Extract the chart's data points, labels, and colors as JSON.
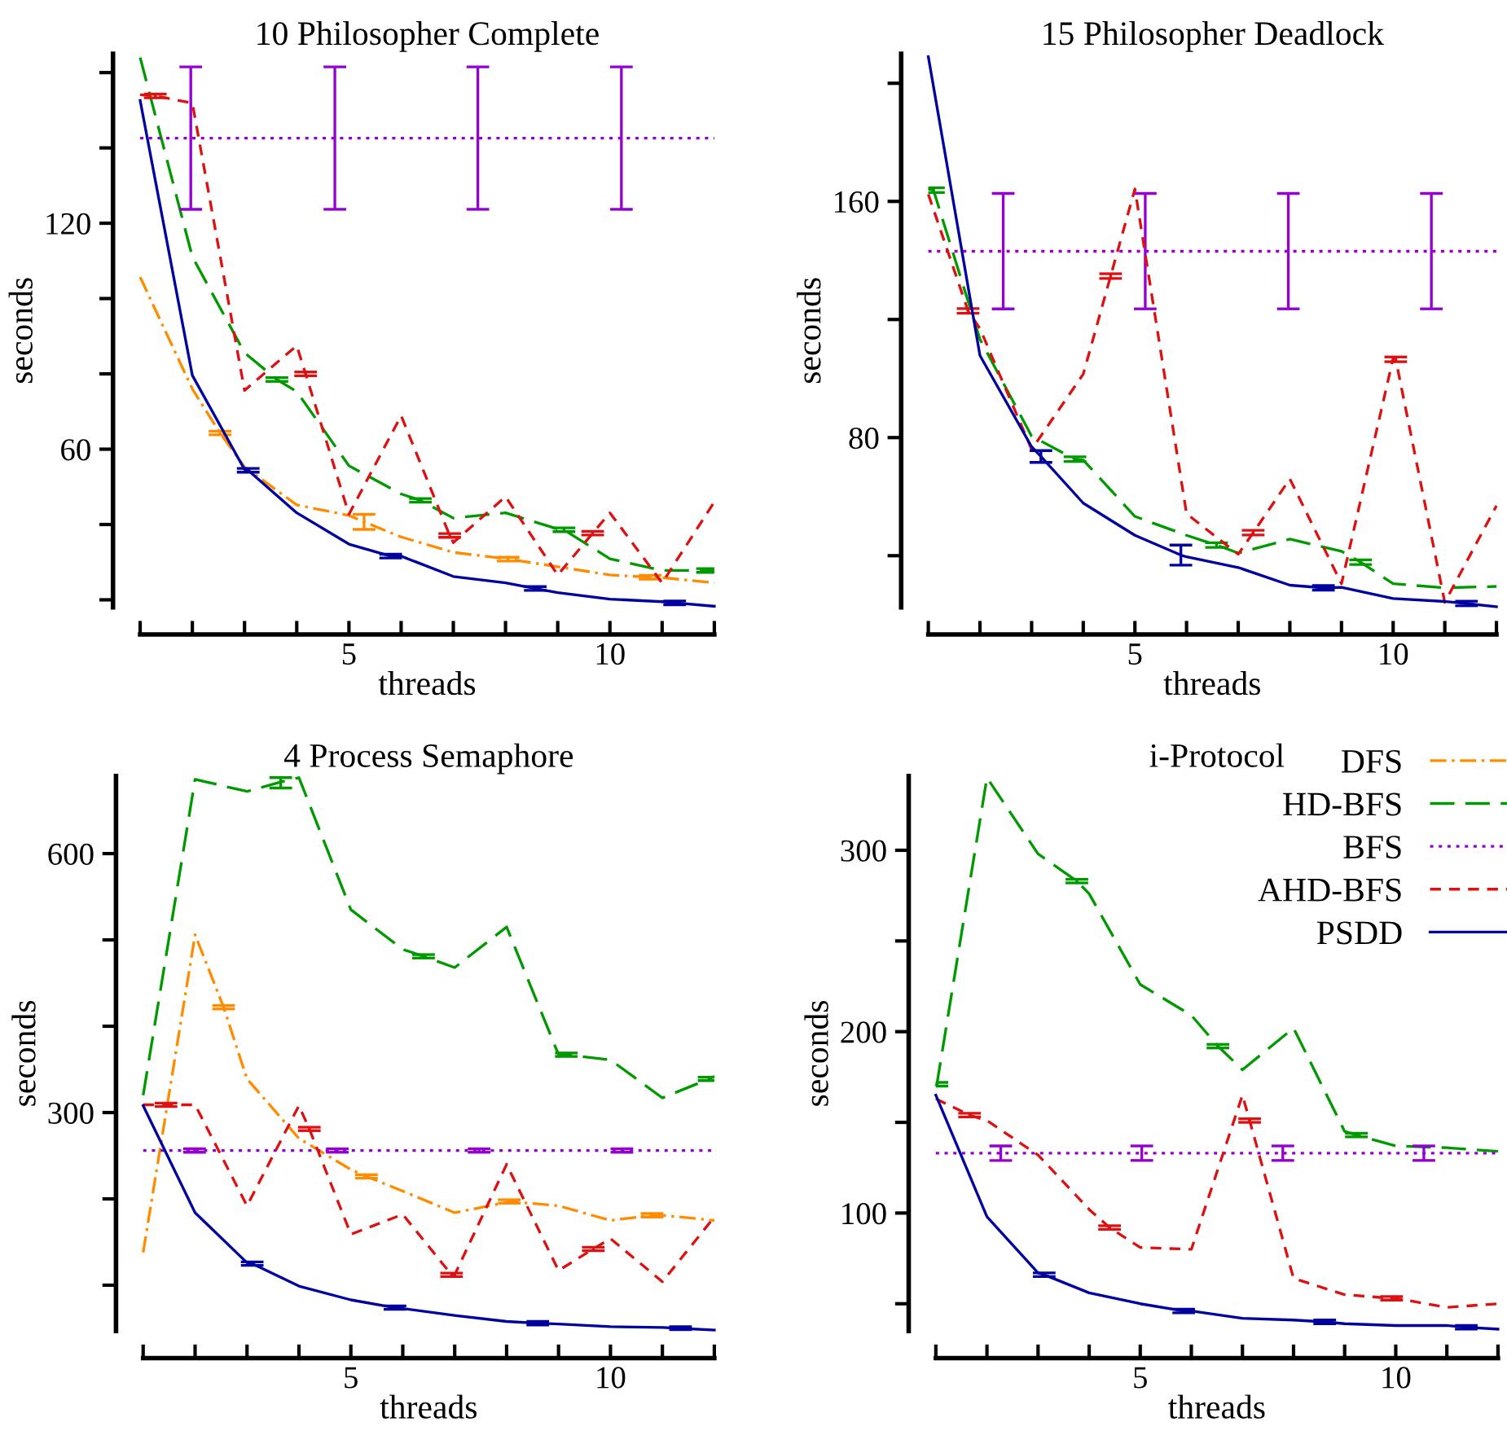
{
  "chart_data": [
    {
      "type": "line",
      "title": "10 Philosopher Complete",
      "xlabel": "threads",
      "ylabel": "seconds",
      "xlim": [
        1,
        12
      ],
      "ylim": [
        18,
        165
      ],
      "xticks": [
        {
          "value": 1,
          "label": null
        },
        {
          "value": 2,
          "label": null
        },
        {
          "value": 3,
          "label": null
        },
        {
          "value": 4,
          "label": null
        },
        5,
        {
          "value": 6,
          "label": null
        },
        {
          "value": 7,
          "label": null
        },
        {
          "value": 8,
          "label": null
        },
        {
          "value": 9,
          "label": null
        },
        10,
        {
          "value": 11,
          "label": null
        },
        {
          "value": 12,
          "label": null
        }
      ],
      "yticks": [
        {
          "value": 20,
          "label": null
        },
        {
          "value": 40,
          "label": null
        },
        60,
        {
          "value": 80,
          "label": null
        },
        {
          "value": 100,
          "label": null
        },
        120,
        {
          "value": 140,
          "label": null
        },
        {
          "value": 160,
          "label": null
        }
      ],
      "grid": false,
      "legend": false,
      "series": [
        {
          "color": "#ff8c00",
          "line_style": "dashdot",
          "x": [
            1,
            2,
            2.53,
            3,
            4,
            5,
            5.29,
            6,
            7,
            8,
            8.05,
            9,
            10,
            10.77,
            11,
            12
          ],
          "values": [
            105.7,
            76.0,
            64.3,
            55.3,
            45.2,
            42.4,
            40.7,
            36.7,
            32.6,
            30.9,
            30.8,
            28.8,
            26.6,
            26.0,
            25.9,
            24.5
          ],
          "errors": [
            null,
            null,
            0.5,
            null,
            null,
            null,
            2,
            null,
            null,
            null,
            0.5,
            null,
            null,
            0.5,
            null,
            null
          ]
        },
        {
          "color": "#009900",
          "line_style": "longdash",
          "x": [
            1,
            2,
            3,
            3.62,
            4,
            5,
            6,
            6.37,
            7,
            8,
            9,
            9.12,
            10,
            11,
            11.87,
            12
          ],
          "values": [
            164,
            111.1,
            85.6,
            78.5,
            75.3,
            55.6,
            48.1,
            46.4,
            41.7,
            43.1,
            38.8,
            38.6,
            30.9,
            27.8,
            27.8,
            27.8
          ],
          "errors": [
            null,
            null,
            null,
            0.5,
            null,
            null,
            null,
            0.5,
            null,
            null,
            null,
            0.5,
            null,
            null,
            0.5,
            null
          ]
        },
        {
          "color": "#9400d3",
          "line_style": "dotted",
          "x": [
            1,
            1.97,
            4.73,
            7.47,
            10.22,
            12
          ],
          "values": [
            142.6,
            142.6,
            142.6,
            142.6,
            142.6,
            142.6
          ],
          "errors": [
            null,
            [
              123.7,
              161.5
            ],
            [
              123.7,
              161.5
            ],
            [
              123.7,
              161.5
            ],
            [
              123.7,
              161.5
            ],
            null
          ]
        },
        {
          "color": "#dd1111",
          "line_style": "dashed",
          "x": [
            1,
            1.29,
            2,
            3,
            4,
            4.17,
            5,
            6,
            6.93,
            7,
            8,
            9,
            9.67,
            10,
            11,
            12
          ],
          "values": [
            154.1,
            153.8,
            151.9,
            75.6,
            87.5,
            80.0,
            42.7,
            68.9,
            37.1,
            35.2,
            47.4,
            26.6,
            37.7,
            43.1,
            24.5,
            46.0
          ],
          "errors": [
            null,
            0.5,
            null,
            null,
            null,
            0.5,
            null,
            null,
            0.5,
            null,
            null,
            null,
            0.5,
            null,
            null,
            null
          ]
        },
        {
          "color": "#0000a0",
          "line_style": "solid",
          "x": [
            1,
            2,
            3,
            3.07,
            4,
            5,
            5.8,
            6,
            7,
            8,
            8.57,
            9,
            10,
            11,
            11.24,
            12
          ],
          "values": [
            152.6,
            79.6,
            54.6,
            54.4,
            43.1,
            34.8,
            31.6,
            31.6,
            26.2,
            24.5,
            23.0,
            21.9,
            20.2,
            19.5,
            19.2,
            18.3
          ],
          "errors": [
            null,
            null,
            null,
            0.5,
            null,
            null,
            0.5,
            null,
            null,
            null,
            0.5,
            null,
            null,
            null,
            0.5,
            null
          ]
        }
      ]
    },
    {
      "type": "line",
      "title": "15 Philosopher Deadlock",
      "xlabel": "threads",
      "ylabel": "seconds",
      "xlim": [
        1,
        12
      ],
      "ylim": [
        22.5,
        210
      ],
      "xticks": [
        {
          "value": 1,
          "label": null
        },
        {
          "value": 2,
          "label": null
        },
        {
          "value": 3,
          "label": null
        },
        {
          "value": 4,
          "label": null
        },
        5,
        {
          "value": 6,
          "label": null
        },
        {
          "value": 7,
          "label": null
        },
        {
          "value": 8,
          "label": null
        },
        {
          "value": 9,
          "label": null
        },
        10,
        {
          "value": 11,
          "label": null
        },
        {
          "value": 12,
          "label": null
        }
      ],
      "yticks": [
        {
          "value": 40,
          "label": null
        },
        80,
        {
          "value": 120,
          "label": null
        },
        160,
        {
          "value": 200,
          "label": null
        }
      ],
      "grid": false,
      "legend": false,
      "series": [
        {
          "color": "#009900",
          "line_style": "longdash",
          "x": [
            1,
            1.1,
            2,
            3,
            3.84,
            4,
            5,
            6,
            6.58,
            7,
            8,
            9,
            9.37,
            10,
            11,
            12
          ],
          "values": [
            164.2,
            163.8,
            113.3,
            80.5,
            72.7,
            72.4,
            53.3,
            46.9,
            43.6,
            40.9,
            45.6,
            41.5,
            37.8,
            30.5,
            29.1,
            29.6
          ],
          "errors": [
            null,
            0.8,
            null,
            null,
            0.8,
            null,
            null,
            null,
            0.8,
            null,
            null,
            null,
            0.8,
            null,
            null,
            null
          ]
        },
        {
          "color": "#9400d3",
          "line_style": "dotted",
          "x": [
            1,
            2.45,
            5.2,
            7.97,
            10.74,
            12
          ],
          "values": [
            143.1,
            143.1,
            143.1,
            143.1,
            143.1,
            143.1
          ],
          "errors": [
            null,
            [
              123.6,
              162.7
            ],
            [
              123.6,
              162.7
            ],
            [
              123.6,
              162.7
            ],
            [
              123.6,
              162.7
            ],
            null
          ]
        },
        {
          "color": "#dd1111",
          "line_style": "dashed",
          "x": [
            1,
            1.77,
            2,
            3,
            4,
            4.53,
            5,
            6,
            7,
            7.29,
            8,
            9,
            10,
            10.05,
            11,
            12
          ],
          "values": [
            162.4,
            122.9,
            116.9,
            76.0,
            101.5,
            134.7,
            164.2,
            54.2,
            40.5,
            47.8,
            66.0,
            30.5,
            106.9,
            106.5,
            24.2,
            56.9
          ],
          "errors": [
            null,
            0.8,
            null,
            null,
            null,
            0.8,
            null,
            null,
            null,
            0.8,
            null,
            null,
            null,
            0.8,
            null,
            null
          ]
        },
        {
          "color": "#0000a0",
          "line_style": "solid",
          "x": [
            1,
            2,
            3,
            3.18,
            4,
            5,
            5.89,
            6,
            7,
            8,
            8.65,
            9,
            10,
            11,
            11.42,
            12
          ],
          "values": [
            209,
            107.8,
            76.9,
            73.6,
            57.8,
            46.9,
            40.2,
            39.6,
            36.0,
            30.0,
            29.1,
            29.3,
            25.5,
            24.5,
            23.8,
            22.7
          ],
          "errors": [
            null,
            null,
            null,
            2,
            null,
            null,
            3.4,
            null,
            null,
            null,
            0.8,
            null,
            null,
            null,
            0.8,
            null
          ]
        }
      ]
    },
    {
      "type": "line",
      "title": "4 Process Semaphore",
      "xlabel": "threads",
      "ylabel": "seconds",
      "xlim": [
        1,
        12
      ],
      "ylim": [
        47,
        690
      ],
      "xticks": [
        {
          "value": 1,
          "label": null
        },
        {
          "value": 2,
          "label": null
        },
        {
          "value": 3,
          "label": null
        },
        {
          "value": 4,
          "label": null
        },
        5,
        {
          "value": 6,
          "label": null
        },
        {
          "value": 7,
          "label": null
        },
        {
          "value": 8,
          "label": null
        },
        {
          "value": 9,
          "label": null
        },
        10,
        {
          "value": 11,
          "label": null
        },
        {
          "value": 12,
          "label": null
        }
      ],
      "yticks": [
        {
          "value": 100,
          "label": null
        },
        {
          "value": 200,
          "label": null
        },
        300,
        {
          "value": 400,
          "label": null
        },
        {
          "value": 500,
          "label": null
        },
        600
      ],
      "grid": false,
      "legend": false,
      "series": [
        {
          "color": "#ff8c00",
          "line_style": "dashdot",
          "x": [
            1,
            2,
            2.55,
            3,
            4,
            5,
            5.3,
            6,
            7,
            8,
            8.05,
            9,
            10,
            10.8,
            11,
            12
          ],
          "values": [
            138,
            506,
            422,
            339,
            270,
            234,
            226,
            209,
            184,
            196,
            197,
            192,
            175,
            181,
            181,
            175
          ],
          "errors": [
            null,
            null,
            2,
            null,
            null,
            null,
            2,
            null,
            null,
            null,
            2,
            null,
            null,
            2,
            null,
            null
          ]
        },
        {
          "color": "#009900",
          "line_style": "longdash",
          "x": [
            1,
            2,
            3,
            3.65,
            4,
            5,
            6,
            6.4,
            7,
            8,
            9,
            9.15,
            10,
            11,
            11.9,
            12
          ],
          "values": [
            320,
            686,
            672,
            683,
            688,
            535,
            489,
            481,
            468,
            515,
            367,
            367,
            361,
            317,
            339,
            342
          ],
          "errors": [
            null,
            null,
            null,
            [
              676,
              688
            ],
            null,
            null,
            null,
            2,
            null,
            null,
            null,
            2,
            null,
            null,
            2,
            null
          ]
        },
        {
          "color": "#9400d3",
          "line_style": "dotted",
          "x": [
            1,
            1.99,
            4.74,
            7.47,
            10.22,
            12
          ],
          "values": [
            256,
            256,
            256,
            256,
            256,
            256
          ],
          "errors": [
            null,
            2,
            2,
            2,
            2,
            null
          ]
        },
        {
          "color": "#dd1111",
          "line_style": "dashed",
          "x": [
            1,
            1.44,
            2,
            3,
            4,
            4.2,
            5,
            6,
            6.94,
            7,
            8,
            9,
            9.67,
            10,
            11,
            12
          ],
          "values": [
            309,
            309,
            309,
            192,
            308,
            281,
            159,
            182,
            112,
            112,
            240,
            117,
            142,
            154,
            104,
            179
          ],
          "errors": [
            null,
            2,
            null,
            null,
            null,
            2,
            null,
            null,
            2,
            null,
            null,
            null,
            2,
            null,
            null,
            null
          ]
        },
        {
          "color": "#0000a0",
          "line_style": "solid",
          "x": [
            1,
            2,
            3,
            3.1,
            4,
            5,
            5.85,
            6,
            7,
            8,
            8.6,
            9,
            10,
            11,
            11.35,
            12
          ],
          "values": [
            308,
            184,
            126,
            125,
            99,
            83,
            74,
            73,
            65,
            58,
            56,
            55,
            52,
            51,
            50,
            48
          ],
          "errors": [
            null,
            null,
            null,
            2,
            null,
            null,
            2,
            null,
            null,
            null,
            2,
            null,
            null,
            null,
            2,
            null
          ]
        }
      ]
    },
    {
      "type": "line",
      "title": "i-Protocol",
      "xlabel": "threads",
      "ylabel": "seconds",
      "xlim": [
        1,
        12
      ],
      "ylim": [
        35,
        341
      ],
      "xticks": [
        {
          "value": 1,
          "label": null
        },
        {
          "value": 2,
          "label": null
        },
        {
          "value": 3,
          "label": null
        },
        {
          "value": 4,
          "label": null
        },
        5,
        {
          "value": 6,
          "label": null
        },
        {
          "value": 7,
          "label": null
        },
        {
          "value": 8,
          "label": null
        },
        {
          "value": 9,
          "label": null
        },
        10,
        {
          "value": 11,
          "label": null
        },
        {
          "value": 12,
          "label": null
        }
      ],
      "yticks": [
        {
          "value": 50,
          "label": null
        },
        100,
        {
          "value": 150,
          "label": null
        },
        200,
        {
          "value": 250,
          "label": null
        },
        300
      ],
      "grid": false,
      "legend": "top right",
      "series": [
        {
          "name": "DFS",
          "color": "#ff8c00",
          "line_style": "dashdot"
        },
        {
          "name": "HD-BFS",
          "color": "#009900",
          "line_style": "longdash",
          "x": [
            1,
            1.02,
            2,
            3,
            3.76,
            4,
            5,
            6,
            6.52,
            7,
            8,
            9,
            9.23,
            10,
            11,
            12
          ],
          "values": [
            170,
            171,
            340,
            298,
            283,
            276,
            226,
            209,
            192,
            179,
            202,
            145,
            143,
            137,
            136,
            134
          ],
          "errors": [
            null,
            1,
            null,
            null,
            1,
            null,
            null,
            null,
            1,
            null,
            null,
            null,
            1,
            null,
            null,
            null
          ]
        },
        {
          "name": "BFS",
          "color": "#9400d3",
          "line_style": "dotted",
          "x": [
            1,
            2.27,
            5.03,
            7.79,
            10.55,
            12
          ],
          "values": [
            133,
            133,
            133,
            133,
            133,
            133
          ],
          "errors": [
            null,
            4,
            4,
            4,
            4,
            null
          ]
        },
        {
          "name": "AHD-BFS",
          "color": "#dd1111",
          "line_style": "dashed",
          "x": [
            1,
            1.66,
            2,
            3,
            4,
            4.4,
            5,
            6,
            7,
            7.14,
            8,
            9,
            9.92,
            10,
            11,
            12
          ],
          "values": [
            163,
            154,
            151,
            132,
            102,
            92,
            81,
            80,
            165,
            151,
            64,
            55,
            53,
            53,
            48,
            50
          ],
          "errors": [
            null,
            1,
            null,
            null,
            null,
            1,
            null,
            null,
            null,
            1,
            null,
            null,
            1,
            null,
            null,
            null
          ]
        },
        {
          "name": "PSDD",
          "color": "#0000a0",
          "line_style": "solid",
          "x": [
            1,
            2,
            3,
            3.12,
            4,
            5,
            5.85,
            6,
            7,
            8,
            8.61,
            9,
            10,
            11,
            11.38,
            12
          ],
          "values": [
            165,
            98,
            67,
            66,
            56,
            50,
            46,
            46,
            42,
            41,
            40,
            39,
            38,
            38,
            37,
            36
          ],
          "errors": [
            null,
            null,
            null,
            1,
            null,
            null,
            1,
            null,
            null,
            null,
            1,
            null,
            null,
            null,
            1,
            null
          ]
        }
      ]
    }
  ]
}
